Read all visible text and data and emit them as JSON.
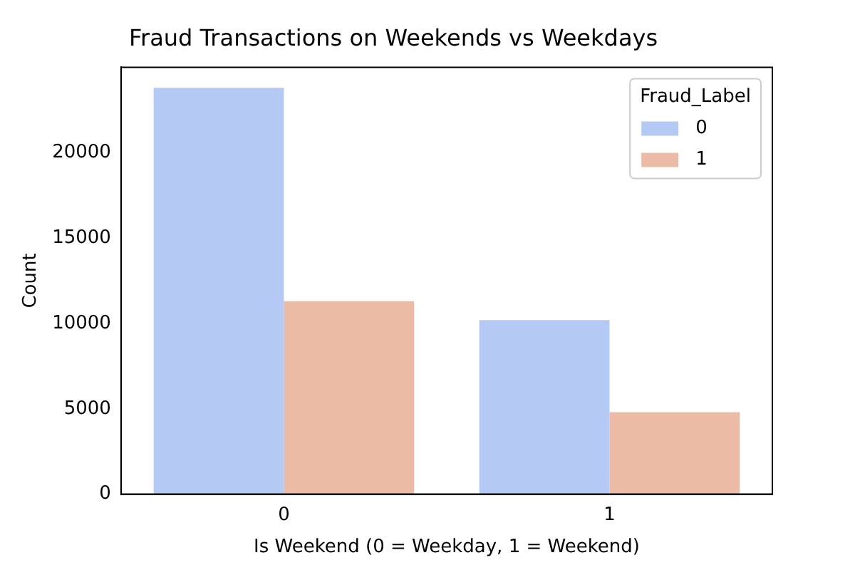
{
  "chart_data": {
    "type": "bar",
    "title": "Fraud Transactions on Weekends vs Weekdays",
    "xlabel": "Is Weekend (0 = Weekday, 1 = Weekend)",
    "ylabel": "Count",
    "categories": [
      "0",
      "1"
    ],
    "series": [
      {
        "name": "0",
        "color": "#b4c9f4",
        "values": [
          23800,
          10200
        ]
      },
      {
        "name": "1",
        "color": "#ecbba6",
        "values": [
          11300,
          4800
        ]
      }
    ],
    "ylim": [
      0,
      25000
    ],
    "yticks": [
      0,
      5000,
      10000,
      15000,
      20000
    ],
    "grid": false,
    "legend": "top right",
    "legend_title": "Fraud_Label"
  }
}
